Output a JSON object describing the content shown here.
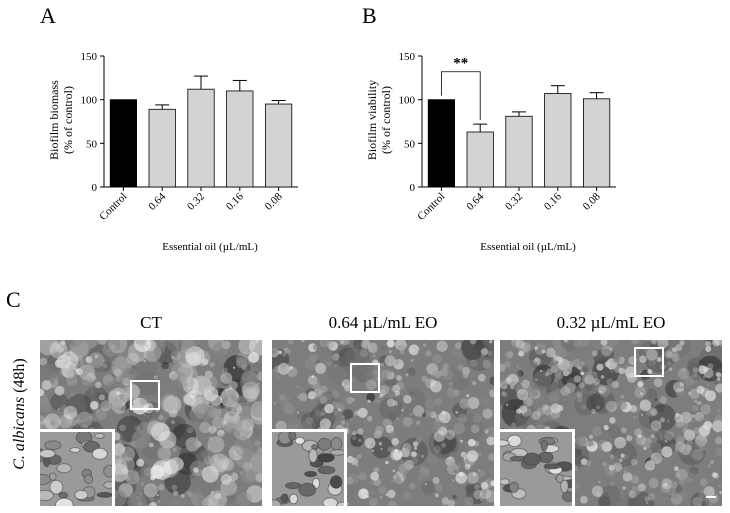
{
  "panels": {
    "a_letter": "A",
    "b_letter": "B",
    "c_letter": "C"
  },
  "chart_data": [
    {
      "type": "bar",
      "panel": "A",
      "categories": [
        "Control",
        "0.64",
        "0.32",
        "0.16",
        "0.08"
      ],
      "values": [
        100,
        89,
        112,
        110,
        95
      ],
      "errors": [
        0,
        5,
        15,
        12,
        4
      ],
      "bar_colors": [
        "#000000",
        "#d3d3d3",
        "#d3d3d3",
        "#d3d3d3",
        "#d3d3d3"
      ],
      "ylabel_line1": "Biofilm biomass",
      "ylabel_line2": "(% of control)",
      "xlabel": "Essential oil (µL/mL)",
      "ylim": [
        0,
        150
      ],
      "yticks": [
        0,
        50,
        100,
        150
      ]
    },
    {
      "type": "bar",
      "panel": "B",
      "categories": [
        "Control",
        "0.64",
        "0.32",
        "0.16",
        "0.08"
      ],
      "values": [
        100,
        63,
        81,
        107,
        101
      ],
      "errors": [
        0,
        9,
        5,
        9,
        7
      ],
      "bar_colors": [
        "#000000",
        "#d3d3d3",
        "#d3d3d3",
        "#d3d3d3",
        "#d3d3d3"
      ],
      "ylabel_line1": "Biofilm viability",
      "ylabel_line2": "(% of control)",
      "xlabel": "Essential oil (µL/mL)",
      "ylim": [
        0,
        150
      ],
      "yticks": [
        0,
        50,
        100,
        150
      ],
      "significance": {
        "label": "**",
        "from": "Control",
        "to": "0.64"
      }
    }
  ],
  "microscopy": {
    "row_label_italic": "C. albicans",
    "row_label_rest": " (48h)",
    "images": [
      {
        "title": "CT"
      },
      {
        "title": "0.64 µL/mL EO"
      },
      {
        "title": "0.32 µL/mL EO"
      }
    ]
  }
}
